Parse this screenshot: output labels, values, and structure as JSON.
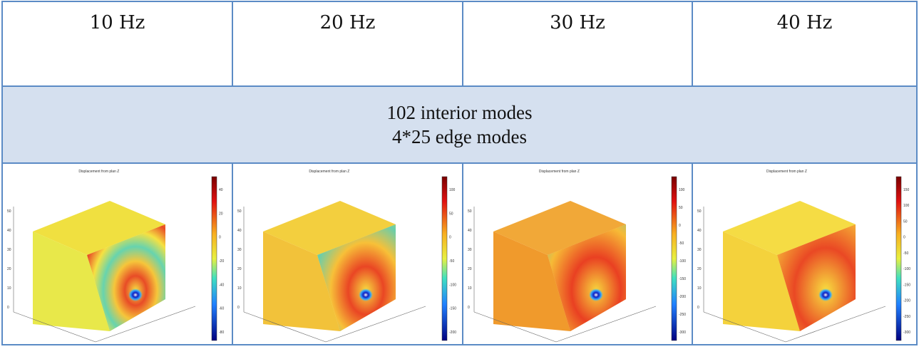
{
  "frequencies": [
    "10 Hz",
    "20 Hz",
    "30 Hz",
    "40 Hz"
  ],
  "modes": {
    "interior": "102 interior modes",
    "edge": "4*25 edge modes"
  },
  "plots": [
    {
      "title": "Displacement from plan Z",
      "colorbar_ticks": [
        "40",
        "20",
        "0",
        "-20",
        "-40",
        "-60",
        "-80"
      ],
      "axis_ticks": [
        "50",
        "40",
        "30",
        "20",
        "10",
        "0"
      ]
    },
    {
      "title": "Displacement from plan Z",
      "colorbar_ticks": [
        "100",
        "50",
        "0",
        "-50",
        "-100",
        "-150",
        "-200"
      ],
      "axis_ticks": [
        "50",
        "40",
        "30",
        "20",
        "10",
        "0"
      ]
    },
    {
      "title": "Displacement from plan Z",
      "colorbar_ticks": [
        "100",
        "50",
        "0",
        "-50",
        "-100",
        "-150",
        "-200",
        "-250",
        "-300"
      ],
      "axis_ticks": [
        "50",
        "40",
        "30",
        "20",
        "10",
        "0"
      ]
    },
    {
      "title": "Displacement from plan Z",
      "colorbar_ticks": [
        "150",
        "100",
        "50",
        "0",
        "-50",
        "-100",
        "-150",
        "-200",
        "-250",
        "-300"
      ],
      "axis_ticks": [
        "50",
        "40",
        "30",
        "20",
        "10",
        "0"
      ]
    }
  ],
  "colors": {
    "border": "#5b8bc5",
    "modes_background": "#d5e0ef"
  }
}
